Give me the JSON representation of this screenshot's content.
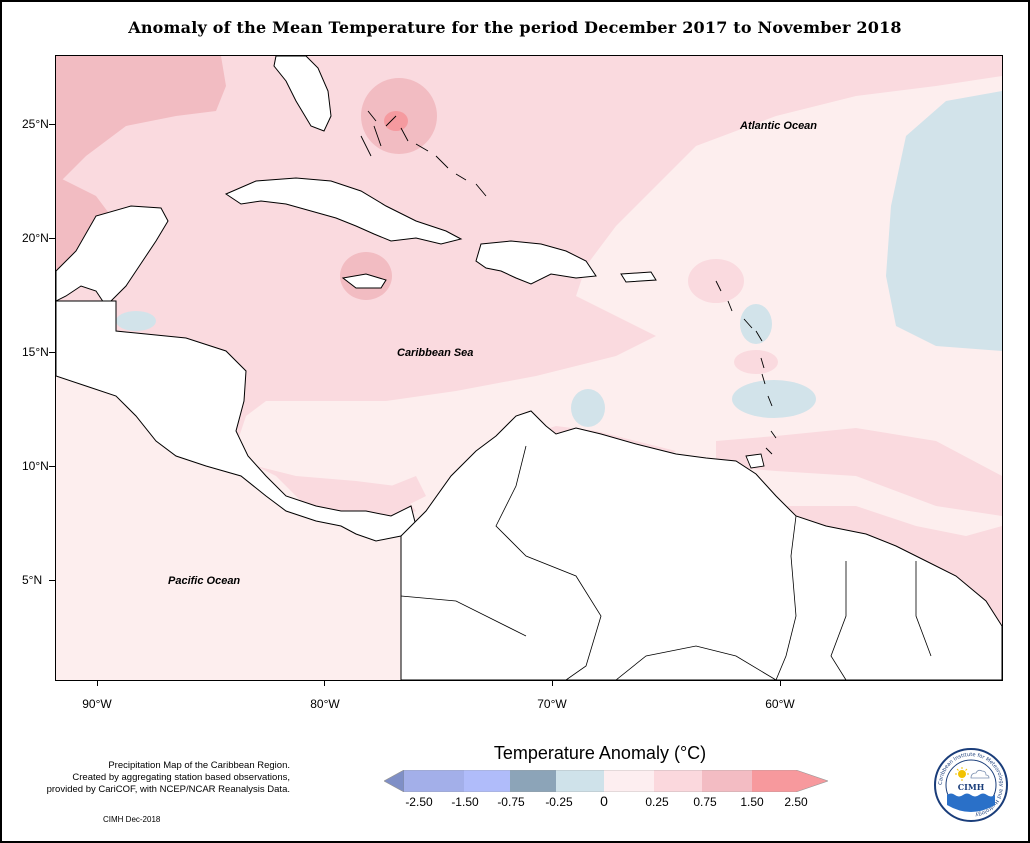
{
  "title": "Anomaly of the Mean Temperature for the period December 2017 to November 2018",
  "map": {
    "y_ticks": [
      "25°N",
      "20°N",
      "15°N",
      "10°N",
      "5°N"
    ],
    "x_ticks": [
      "90°W",
      "80°W",
      "70°W",
      "60°W"
    ],
    "labels": {
      "atlantic": "Atlantic Ocean",
      "caribbean": "Caribbean Sea",
      "pacific": "Pacific Ocean"
    },
    "colors": {
      "land": "#ffffff",
      "coast": "#000000",
      "anom_0_025": "#fdeeee",
      "anom_025_075": "#fadadf",
      "anom_075_150": "#f2bcc2",
      "anom_150_250": "#f59a9f",
      "anom_m025_0": "#d2e3ea",
      "anom_m075_m025": "#8ba3b8"
    }
  },
  "legend": {
    "title": "Temperature Anomaly (°C)",
    "labels": [
      "-2.50",
      "-1.50",
      "-0.75",
      "-0.25",
      "0",
      "0.25",
      "0.75",
      "1.50",
      "2.50"
    ],
    "colors": [
      "#7f8fc6",
      "#a3afe9",
      "#b0bcfa",
      "#8ca4b8",
      "#cfe2ea",
      "#fdeef0",
      "#fbd8dd",
      "#f3bcc3",
      "#f7999d"
    ]
  },
  "footnote": {
    "lines": [
      "Precipitation Map of the Caribbean Region.",
      "Created by aggregating station based observations,",
      "provided by CariCOF, with NCEP/NCAR Reanalysis Data."
    ],
    "credit": "CIMH Dec-2018"
  },
  "logo": {
    "ring_text": "Caribbean Institute for Meteorology and Hydrology",
    "abbr": "CIMH"
  }
}
